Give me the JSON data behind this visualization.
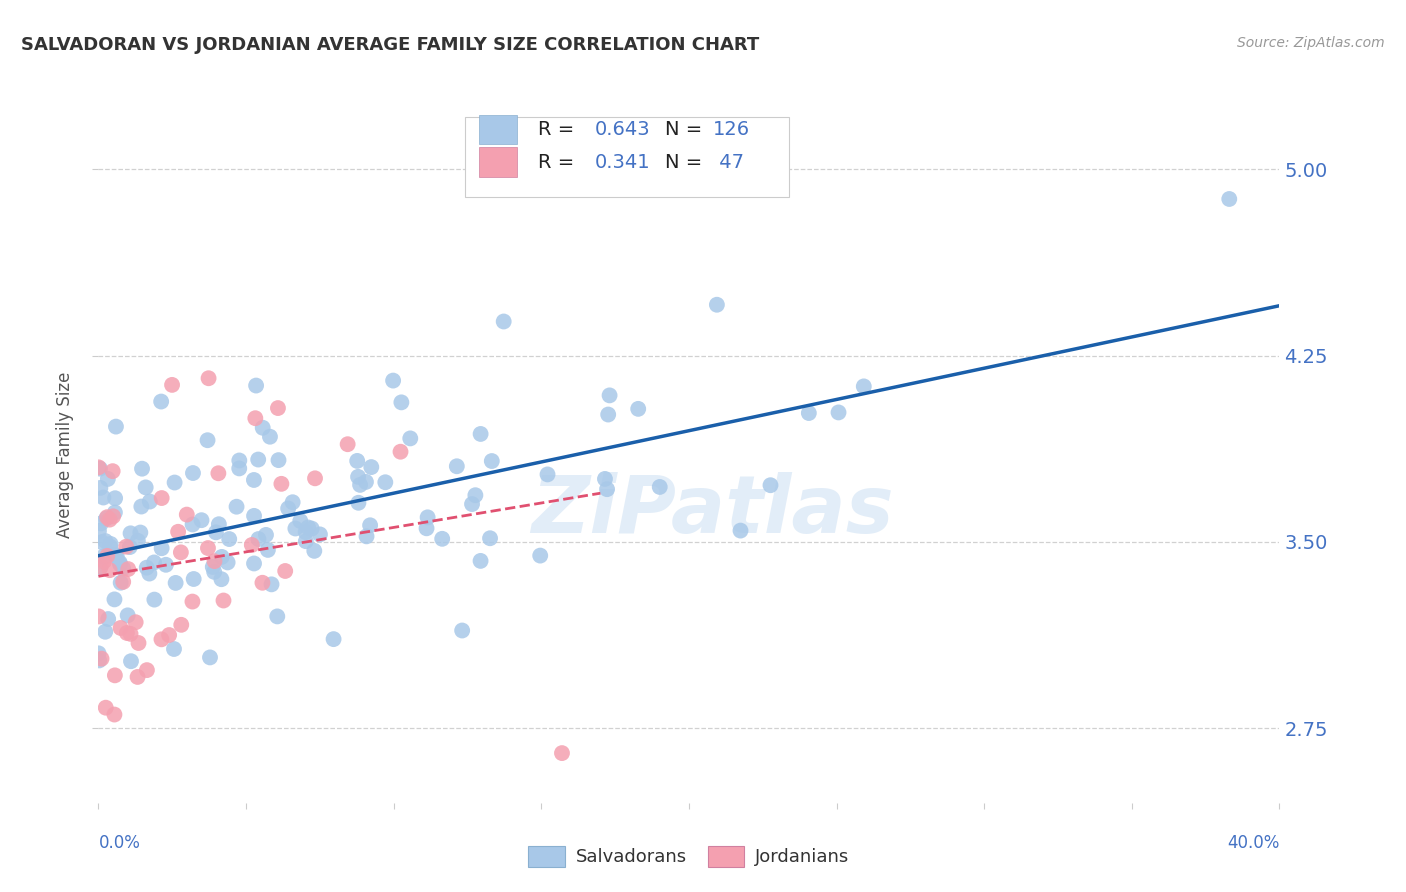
{
  "title": "SALVADORAN VS JORDANIAN AVERAGE FAMILY SIZE CORRELATION CHART",
  "source": "Source: ZipAtlas.com",
  "ylabel": "Average Family Size",
  "yticks": [
    2.75,
    3.5,
    4.25,
    5.0
  ],
  "xlim": [
    0.0,
    0.4
  ],
  "ylim": [
    2.45,
    5.25
  ],
  "salvadoran_color": "#a8c8e8",
  "jordanian_color": "#f4a0b0",
  "salvadoran_line_color": "#1a5faa",
  "jordanian_line_color": "#e05070",
  "R_salvadoran": 0.643,
  "N_salvadoran": 126,
  "R_jordanian": 0.341,
  "N_jordanian": 47,
  "watermark": "ZiPatlas",
  "background_color": "#ffffff",
  "grid_color": "#cccccc",
  "title_color": "#333333",
  "axis_label_color": "#555555",
  "right_tick_color": "#4472c4",
  "legend_box_color_salv": "#a8c8e8",
  "legend_box_color_jord": "#f4a0b0"
}
